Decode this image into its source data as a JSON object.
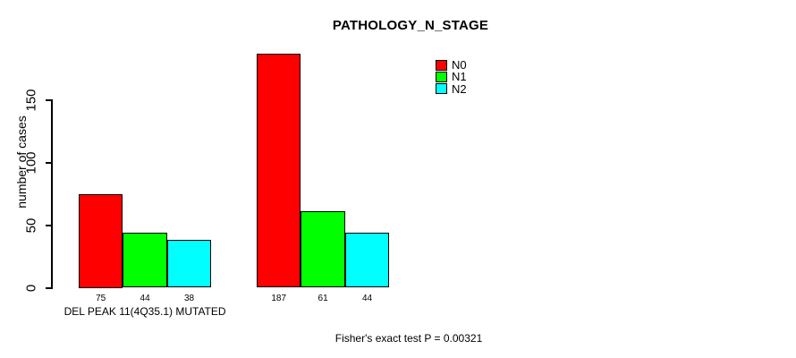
{
  "chart_data": {
    "type": "bar",
    "title": "PATHOLOGY_N_STAGE",
    "xlabel": "",
    "ylabel": "number of cases",
    "categories": [
      "DEL PEAK 11(4Q35.1) MUTATED",
      ""
    ],
    "series": [
      {
        "name": "N0",
        "color": "#ff0000",
        "values": [
          75,
          187
        ]
      },
      {
        "name": "N1",
        "color": "#00ff00",
        "values": [
          44,
          61
        ]
      },
      {
        "name": "N2",
        "color": "#00ffff",
        "values": [
          38,
          44
        ]
      }
    ],
    "bar_value_labels": [
      [
        75,
        44,
        38
      ],
      [
        187,
        61,
        44
      ]
    ],
    "yticks": [
      0,
      50,
      100,
      150
    ],
    "ylim": [
      0,
      190
    ],
    "grid": false,
    "legend": {
      "position": "top-right",
      "entries": [
        "N0",
        "N1",
        "N2"
      ]
    },
    "annotation": "Fisher's exact test P = 0.00321"
  }
}
